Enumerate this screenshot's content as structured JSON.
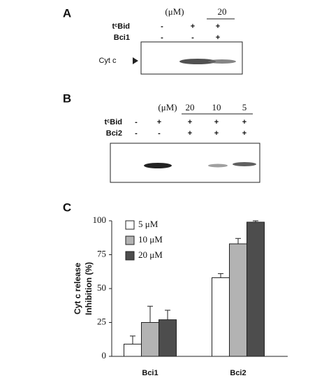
{
  "panel_a": {
    "label": "A",
    "unit": "(μM)",
    "concentrations": [
      "20"
    ],
    "rows": [
      {
        "name": "tᶜBid",
        "lanes": [
          "-",
          "+",
          "+"
        ]
      },
      {
        "name": "Bci1",
        "lanes": [
          "-",
          "-",
          "+"
        ]
      }
    ],
    "band_label": "Cyt c"
  },
  "panel_b": {
    "label": "B",
    "unit": "(μM)",
    "concentrations": [
      "20",
      "10",
      "5"
    ],
    "rows": [
      {
        "name": "tᶜBid",
        "lanes": [
          "-",
          "+",
          "+",
          "+",
          "+"
        ]
      },
      {
        "name": "Bci2",
        "lanes": [
          "-",
          "-",
          "+",
          "+",
          "+"
        ]
      }
    ]
  },
  "chart_data": {
    "type": "bar",
    "panel_label": "C",
    "y_label": [
      "Cyt c release",
      "Inhibition (%)"
    ],
    "categories": [
      "Bci1",
      "Bci2"
    ],
    "series": [
      {
        "name": "5 μM",
        "color": "#ffffff",
        "values": [
          9,
          58
        ],
        "errors": [
          6,
          3
        ]
      },
      {
        "name": "10 μM",
        "color": "#b3b3b3",
        "values": [
          25,
          83
        ],
        "errors": [
          12,
          4
        ]
      },
      {
        "name": "20 μM",
        "color": "#4d4d4d",
        "values": [
          27,
          99
        ],
        "errors": [
          7,
          1
        ]
      }
    ],
    "ylim": [
      0,
      100
    ],
    "yticks": [
      0,
      25,
      50,
      75,
      100
    ],
    "legend": "upper-left"
  }
}
